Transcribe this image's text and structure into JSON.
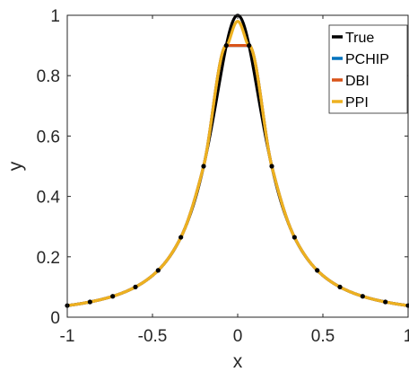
{
  "chart_data": {
    "type": "line",
    "xlabel": "x",
    "ylabel": "y",
    "xlim": [
      -1,
      1
    ],
    "ylim": [
      0,
      1
    ],
    "xticks": [
      "-1",
      "-0.5",
      "0",
      "0.5",
      "1"
    ],
    "yticks": [
      "0",
      "0.2",
      "0.4",
      "0.6",
      "0.8",
      "1"
    ],
    "grid": false,
    "legend_position": "top-right",
    "function": "1/(1+25x^2)",
    "series": [
      {
        "name": "True",
        "color": "#000000"
      },
      {
        "name": "PCHIP",
        "color": "#0072BD"
      },
      {
        "name": "DBI",
        "color": "#D95319"
      },
      {
        "name": "PPI",
        "color": "#EDB120"
      }
    ],
    "markers": {
      "x": [
        -1,
        -0.8667,
        -0.7333,
        -0.6,
        -0.4667,
        -0.3333,
        -0.2,
        -0.0667,
        0.0667,
        0.2,
        0.3333,
        0.4667,
        0.6,
        0.7333,
        0.8667,
        1
      ],
      "y": [
        0.0385,
        0.0505,
        0.0692,
        0.1,
        0.1552,
        0.2647,
        0.5,
        0.9,
        0.9,
        0.5,
        0.2647,
        0.1552,
        0.1,
        0.0692,
        0.0505,
        0.0385
      ]
    }
  }
}
